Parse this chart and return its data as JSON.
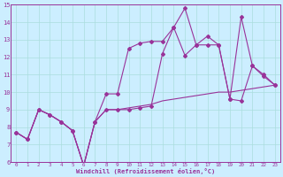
{
  "xlabel": "Windchill (Refroidissement éolien,°C)",
  "background_color": "#cceeff",
  "grid_color": "#aadddd",
  "line_color": "#993399",
  "xlim": [
    -0.5,
    23.5
  ],
  "ylim": [
    6,
    15
  ],
  "yticks": [
    6,
    7,
    8,
    9,
    10,
    11,
    12,
    13,
    14,
    15
  ],
  "xticks": [
    0,
    1,
    2,
    3,
    4,
    5,
    6,
    7,
    8,
    9,
    10,
    11,
    12,
    13,
    14,
    15,
    16,
    17,
    18,
    19,
    20,
    21,
    22,
    23
  ],
  "line1_x": [
    0,
    1,
    2,
    3,
    4,
    5,
    6,
    7,
    8,
    9,
    10,
    11,
    12,
    13,
    14,
    15,
    16,
    17,
    18,
    19,
    20,
    21,
    22,
    23
  ],
  "line1_y": [
    7.7,
    7.3,
    9.0,
    8.7,
    8.3,
    7.8,
    5.8,
    8.3,
    9.9,
    9.9,
    12.5,
    12.8,
    12.9,
    12.9,
    13.7,
    14.8,
    12.7,
    12.7,
    12.7,
    9.6,
    14.3,
    11.5,
    11.0,
    10.4
  ],
  "line2_x": [
    0,
    1,
    2,
    3,
    4,
    5,
    6,
    7,
    8,
    9,
    10,
    11,
    12,
    13,
    14,
    15,
    16,
    17,
    18,
    19,
    20,
    21,
    22,
    23
  ],
  "line2_y": [
    7.7,
    7.3,
    9.0,
    8.7,
    8.3,
    7.8,
    5.8,
    8.3,
    9.0,
    9.0,
    9.0,
    9.1,
    9.2,
    12.2,
    13.7,
    12.1,
    12.7,
    13.2,
    12.7,
    9.6,
    9.5,
    11.5,
    10.9,
    10.4
  ],
  "line3_x": [
    0,
    1,
    2,
    3,
    4,
    5,
    6,
    7,
    8,
    9,
    10,
    11,
    12,
    13,
    14,
    15,
    16,
    17,
    18,
    19,
    20,
    21,
    22,
    23
  ],
  "line3_y": [
    7.7,
    7.3,
    9.0,
    8.7,
    8.3,
    7.8,
    5.8,
    8.3,
    9.0,
    9.0,
    9.1,
    9.2,
    9.3,
    9.5,
    9.6,
    9.7,
    9.8,
    9.9,
    10.0,
    10.0,
    10.1,
    10.2,
    10.3,
    10.4
  ]
}
